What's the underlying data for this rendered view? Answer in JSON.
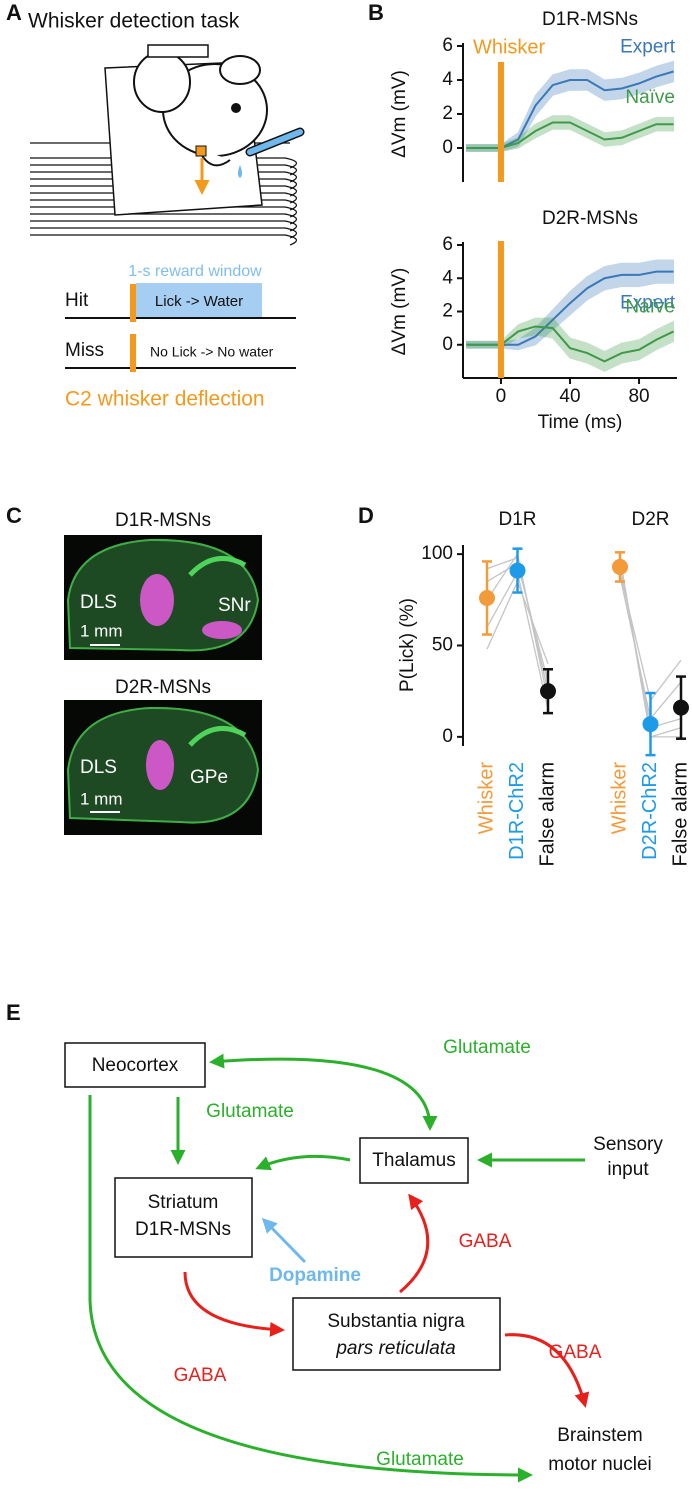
{
  "panel_labels": [
    "A",
    "B",
    "C",
    "D",
    "E"
  ],
  "panel_a": {
    "title": "Whisker detection task",
    "reward_window": "1-s reward window",
    "hit": "Hit",
    "hit_outcome": "Lick -> Water",
    "miss": "Miss",
    "miss_outcome": "No Lick -> No water",
    "stimulus": "C2 whisker deflection"
  },
  "chart_data": [
    {
      "type": "line",
      "title": "D1R-MSNs",
      "ylabel": "ΔVm (mV)",
      "stimulus_label": "Whisker",
      "stimulus_x": 0,
      "stimulus_color": "#f39a1e",
      "x": [
        -20,
        -10,
        0,
        10,
        20,
        30,
        40,
        50,
        60,
        70,
        80,
        90,
        100
      ],
      "xlim": [
        -22,
        102
      ],
      "ylim": [
        -2,
        6
      ],
      "yticks": [
        0,
        2,
        4,
        6
      ],
      "series": [
        {
          "name": "Expert",
          "color": "#3a78b8",
          "values": [
            0,
            0,
            0,
            0.5,
            2.5,
            3.7,
            4.0,
            4.0,
            3.4,
            3.5,
            3.8,
            4.2,
            4.5
          ],
          "errors": [
            0.2,
            0.2,
            0.2,
            0.4,
            0.6,
            0.6,
            0.6,
            0.6,
            0.6,
            0.6,
            0.6,
            0.6,
            0.6
          ]
        },
        {
          "name": "Naïve",
          "color": "#3f9a48",
          "values": [
            0,
            0,
            0,
            0.3,
            1.0,
            1.5,
            1.5,
            1.0,
            0.5,
            0.6,
            1.0,
            1.4,
            1.4
          ],
          "errors": [
            0.2,
            0.2,
            0.2,
            0.3,
            0.4,
            0.4,
            0.4,
            0.4,
            0.4,
            0.4,
            0.4,
            0.4,
            0.4
          ]
        }
      ]
    },
    {
      "type": "line",
      "title": "D2R-MSNs",
      "ylabel": "ΔVm (mV)",
      "xlabel": "Time (ms)",
      "stimulus_x": 0,
      "stimulus_color": "#f39a1e",
      "x": [
        -20,
        -10,
        0,
        10,
        20,
        30,
        40,
        50,
        60,
        70,
        80,
        90,
        100
      ],
      "xlim": [
        -22,
        102
      ],
      "xticks": [
        0,
        40,
        80
      ],
      "ylim": [
        -2,
        6
      ],
      "yticks": [
        0,
        2,
        4,
        6
      ],
      "series": [
        {
          "name": "Expert",
          "color": "#3a78b8",
          "values": [
            0,
            0,
            0,
            0,
            0.5,
            1.5,
            2.5,
            3.4,
            4.0,
            4.2,
            4.2,
            4.4,
            4.4
          ],
          "errors": [
            0.2,
            0.2,
            0.2,
            0.3,
            0.5,
            0.6,
            0.7,
            0.7,
            0.7,
            0.7,
            0.7,
            0.7,
            0.7
          ]
        },
        {
          "name": "Naïve",
          "color": "#3f9a48",
          "values": [
            0,
            0,
            0,
            0.8,
            1.1,
            1.0,
            -0.2,
            -0.5,
            -1.0,
            -0.5,
            -0.3,
            0.3,
            0.8
          ],
          "errors": [
            0.2,
            0.2,
            0.2,
            0.4,
            0.5,
            0.6,
            0.6,
            0.6,
            0.6,
            0.6,
            0.6,
            0.6,
            0.6
          ]
        }
      ]
    },
    {
      "type": "dot",
      "ylabel": "P(Lick) (%)",
      "ylim": [
        -5,
        105
      ],
      "yticks": [
        0,
        50,
        100
      ],
      "groups": [
        {
          "name": "D1R",
          "categories": [
            "Whisker",
            "D1R-ChR2",
            "False alarm"
          ],
          "colors": [
            "#f39a3a",
            "#1e9be8",
            "#111111"
          ],
          "values": [
            76,
            91,
            25
          ],
          "errors": [
            20,
            12,
            12
          ],
          "mice": [
            [
              85,
              95,
              30
            ],
            [
              75,
              100,
              20
            ],
            [
              60,
              90,
              15
            ],
            [
              48,
              85,
              40
            ],
            [
              92,
              98,
              25
            ]
          ]
        },
        {
          "name": "D2R",
          "categories": [
            "Whisker",
            "D2R-ChR2",
            "False alarm"
          ],
          "colors": [
            "#f39a3a",
            "#1e9be8",
            "#111111"
          ],
          "values": [
            93,
            7,
            16
          ],
          "errors": [
            8,
            17,
            17
          ],
          "mice": [
            [
              97,
              0,
              5
            ],
            [
              95,
              5,
              10
            ],
            [
              90,
              20,
              42
            ],
            [
              88,
              10,
              30
            ],
            [
              98,
              0,
              0
            ]
          ]
        }
      ]
    }
  ],
  "panel_c": {
    "images": [
      {
        "title": "D1R-MSNs",
        "labels": [
          "DLS",
          "SNr"
        ],
        "scale_bar": "1 mm"
      },
      {
        "title": "D2R-MSNs",
        "labels": [
          "DLS",
          "GPe"
        ],
        "scale_bar": "1 mm"
      }
    ]
  },
  "panel_e": {
    "nodes": [
      {
        "lines": [
          "Neocortex"
        ]
      },
      {
        "lines": [
          "Thalamus"
        ]
      },
      {
        "lines": [
          "Sensory",
          "input"
        ]
      },
      {
        "lines": [
          "Striatum",
          "D1R-MSNs"
        ]
      },
      {
        "lines": [
          "Substantia nigra",
          "pars reticulata"
        ]
      },
      {
        "lines": [
          "Brainstem",
          "motor nuclei"
        ]
      }
    ],
    "edges": [
      {
        "label": "Glutamate"
      },
      {
        "label": "Glutamate"
      },
      {
        "label": "Dopamine"
      },
      {
        "label": "GABA"
      },
      {
        "label": "GABA"
      },
      {
        "label": "GABA"
      },
      {
        "label": "Glutamate"
      }
    ]
  }
}
